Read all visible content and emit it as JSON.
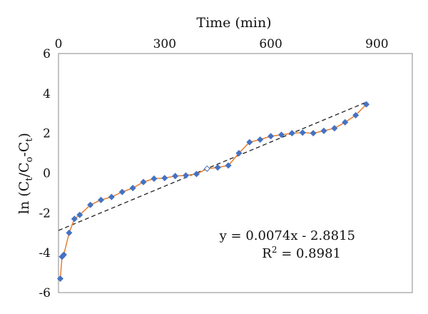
{
  "chart_data": {
    "type": "scatter",
    "title": "",
    "xlabel": "Time (min)",
    "ylabel_parts": [
      "ln (C",
      "t",
      "/C",
      "o",
      "-C",
      "t",
      ")"
    ],
    "xlim": [
      0,
      1000
    ],
    "ylim": [
      -6,
      6
    ],
    "x_ticks": [
      0,
      300,
      600,
      900
    ],
    "y_ticks": [
      6,
      4,
      2,
      0,
      -2,
      -4,
      -6
    ],
    "x_axis_position": "top",
    "grid": false,
    "legend": "none",
    "colors": {
      "line": "#E87D2F",
      "marker": "#4472C4",
      "trendline": "#222222"
    },
    "series": [
      {
        "x": [
          5,
          10,
          15,
          30,
          45,
          60,
          90,
          120,
          150,
          180,
          210,
          240,
          270,
          300,
          330,
          360,
          390,
          420,
          450,
          480,
          510,
          540,
          570,
          600,
          630,
          660,
          690,
          720,
          750,
          780,
          810,
          840,
          870
        ],
        "y": [
          -5.3,
          -4.2,
          -4.1,
          -3.0,
          -2.3,
          -2.1,
          -1.6,
          -1.35,
          -1.2,
          -0.95,
          -0.75,
          -0.45,
          -0.28,
          -0.25,
          -0.15,
          -0.12,
          -0.05,
          0.22,
          0.28,
          0.38,
          1.0,
          1.55,
          1.68,
          1.85,
          1.92,
          2.0,
          2.03,
          2.0,
          2.12,
          2.25,
          2.55,
          2.9,
          3.45
        ],
        "hollow_point_index": 17
      }
    ],
    "trendline": {
      "type": "linear",
      "slope": 0.0074,
      "intercept": -2.8815,
      "x_range": [
        0,
        875
      ],
      "equation": "y = 0.0074x - 2.8815",
      "r2_prefix": "R",
      "r2_sup": "2",
      "r2_value": " = 0.8981"
    }
  }
}
